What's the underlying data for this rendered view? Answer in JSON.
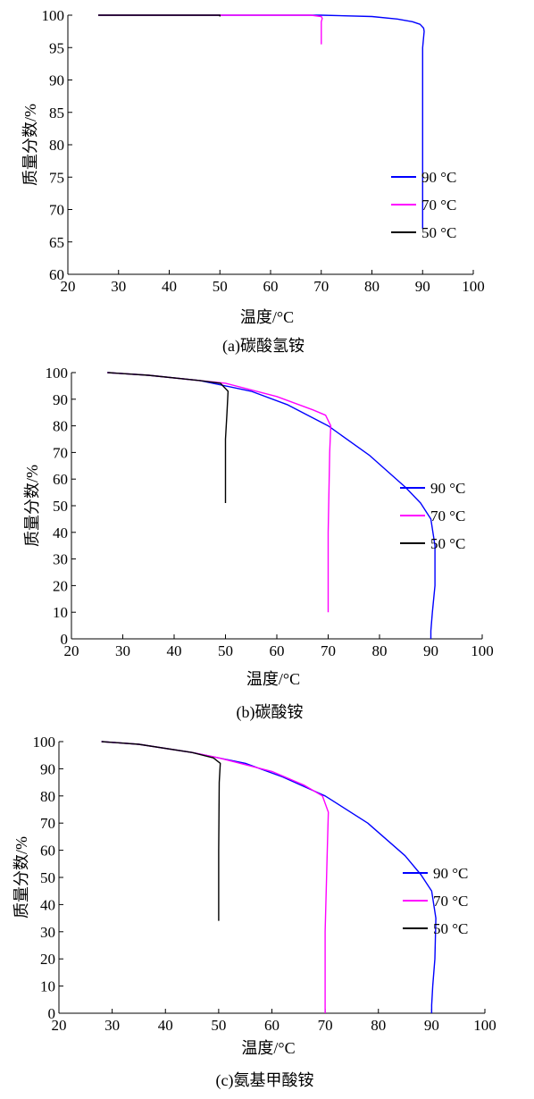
{
  "chart_data": [
    {
      "type": "line",
      "caption": "(a)碳酸氢铵",
      "xlabel": "温度/°C",
      "ylabel": "质量分数/%",
      "xlim": [
        20,
        100
      ],
      "ylim": [
        60,
        100
      ],
      "xticks": [
        "20",
        "30",
        "40",
        "50",
        "60",
        "70",
        "80",
        "90",
        "100"
      ],
      "yticks": [
        "60",
        "65",
        "70",
        "75",
        "80",
        "85",
        "90",
        "95",
        "100"
      ],
      "legend_position": "right",
      "series": [
        {
          "name": "90 °C",
          "color": "#0000ff",
          "x": [
            26,
            70,
            80,
            85,
            88,
            89.5,
            90.2,
            90.3,
            90,
            90,
            90,
            90,
            90
          ],
          "y": [
            100,
            100,
            99.8,
            99.4,
            99,
            98.6,
            98,
            97.5,
            95,
            90,
            80,
            70,
            67
          ]
        },
        {
          "name": "70 °C",
          "color": "#ff00ff",
          "x": [
            26,
            68,
            70,
            70.2,
            70,
            70
          ],
          "y": [
            100,
            100,
            99.8,
            99.5,
            99,
            95.5
          ]
        },
        {
          "name": "50 °C",
          "color": "#000000",
          "x": [
            26,
            50,
            50,
            50
          ],
          "y": [
            100,
            100,
            100,
            99.8
          ]
        }
      ]
    },
    {
      "type": "line",
      "caption": "(b)碳酸铵",
      "xlabel": "温度/°C",
      "ylabel": "质量分数/%",
      "xlim": [
        20,
        100
      ],
      "ylim": [
        0,
        100
      ],
      "xticks": [
        "20",
        "30",
        "40",
        "50",
        "60",
        "70",
        "80",
        "90",
        "100"
      ],
      "yticks": [
        "0",
        "10",
        "20",
        "30",
        "40",
        "50",
        "60",
        "70",
        "80",
        "90",
        "100"
      ],
      "legend_position": "right",
      "series": [
        {
          "name": "90 °C",
          "color": "#0000ff",
          "x": [
            27,
            35,
            45,
            55,
            62,
            70,
            78,
            85,
            88,
            90,
            90.8,
            90.8,
            90.3,
            90,
            90
          ],
          "y": [
            100,
            99,
            97,
            93,
            88,
            80,
            69,
            57,
            51,
            45,
            35,
            20,
            10,
            3,
            0
          ]
        },
        {
          "name": "70 °C",
          "color": "#ff00ff",
          "x": [
            27,
            35,
            45,
            50,
            60,
            67,
            69.5,
            70.5,
            70.3,
            70,
            70
          ],
          "y": [
            100,
            99,
            97,
            96,
            91,
            86,
            84,
            80,
            70,
            40,
            10
          ]
        },
        {
          "name": "50 °C",
          "color": "#000000",
          "x": [
            27,
            35,
            45,
            49,
            50.5,
            50.3,
            50,
            50,
            50
          ],
          "y": [
            100,
            99,
            97,
            96,
            93,
            85,
            75,
            60,
            51
          ]
        }
      ]
    },
    {
      "type": "line",
      "caption": "(c)氨基甲酸铵",
      "xlabel": "温度/°C",
      "ylabel": "质量分数/%",
      "xlim": [
        20,
        100
      ],
      "ylim": [
        0,
        100
      ],
      "xticks": [
        "20",
        "30",
        "40",
        "50",
        "60",
        "70",
        "80",
        "90",
        "100"
      ],
      "yticks": [
        "0",
        "10",
        "20",
        "30",
        "40",
        "50",
        "60",
        "70",
        "80",
        "90",
        "100"
      ],
      "legend_position": "right",
      "series": [
        {
          "name": "90 °C",
          "color": "#0000ff",
          "x": [
            28,
            35,
            45,
            55,
            62,
            70,
            78,
            85,
            88,
            90,
            90.8,
            90.6,
            90.2,
            90,
            90
          ],
          "y": [
            100,
            99,
            96,
            92,
            87,
            80,
            70,
            58,
            51,
            45,
            35,
            20,
            10,
            3,
            0
          ]
        },
        {
          "name": "70 °C",
          "color": "#ff00ff",
          "x": [
            28,
            35,
            45,
            50,
            60,
            66,
            69.5,
            70.6,
            70.4,
            70,
            70
          ],
          "y": [
            100,
            99,
            96,
            94,
            89,
            84,
            80,
            74,
            60,
            30,
            0
          ]
        },
        {
          "name": "50 °C",
          "color": "#000000",
          "x": [
            28,
            35,
            45,
            49,
            50.3,
            50.1,
            50,
            50
          ],
          "y": [
            100,
            99,
            96,
            94,
            92,
            85,
            60,
            34
          ]
        }
      ]
    }
  ]
}
